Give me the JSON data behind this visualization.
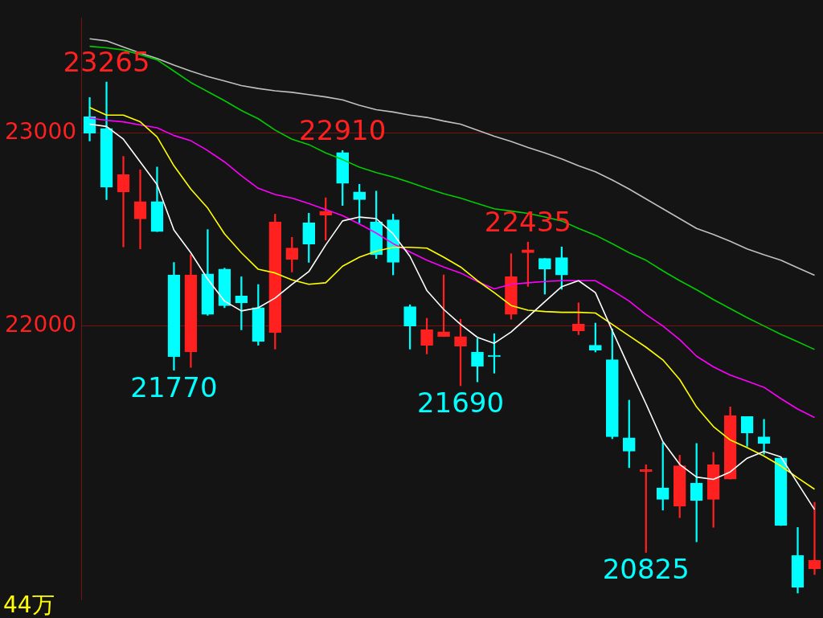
{
  "chart_data": {
    "type": "candlestick",
    "categories": [
      null,
      null,
      null,
      null,
      null,
      null,
      null,
      null,
      null,
      null,
      null,
      null,
      null,
      null,
      null,
      null,
      null,
      null,
      null,
      null,
      null,
      null,
      null,
      null,
      null,
      null,
      null,
      null,
      null,
      null,
      null,
      null,
      null,
      null,
      null,
      null,
      null,
      null,
      null,
      null,
      null,
      null,
      null,
      null
    ],
    "ohlc": [
      [
        23085,
        23185,
        22960,
        23000
      ],
      [
        23025,
        23265,
        22655,
        22720
      ],
      [
        22695,
        22880,
        22410,
        22785
      ],
      [
        22555,
        22810,
        22400,
        22645
      ],
      [
        22645,
        22825,
        22490,
        22490
      ],
      [
        22265,
        22330,
        21770,
        21840
      ],
      [
        21865,
        22370,
        21785,
        22265
      ],
      [
        22270,
        22500,
        22055,
        22060
      ],
      [
        22295,
        22300,
        22095,
        22105
      ],
      [
        22155,
        22255,
        21980,
        22120
      ],
      [
        22095,
        22215,
        21900,
        21920
      ],
      [
        21965,
        22580,
        21880,
        22540
      ],
      [
        22345,
        22460,
        22280,
        22405
      ],
      [
        22535,
        22585,
        22330,
        22425
      ],
      [
        22575,
        22665,
        22445,
        22595
      ],
      [
        22900,
        22910,
        22625,
        22740
      ],
      [
        22695,
        22735,
        22535,
        22655
      ],
      [
        22540,
        22700,
        22350,
        22370
      ],
      [
        22550,
        22580,
        22265,
        22330
      ],
      [
        22100,
        22110,
        21880,
        22000
      ],
      [
        21900,
        22040,
        21855,
        21980
      ],
      [
        21945,
        22265,
        21945,
        21970
      ],
      [
        21895,
        22035,
        21690,
        21945
      ],
      [
        21865,
        21935,
        21710,
        21790
      ],
      [
        21845,
        21960,
        21755,
        21840
      ],
      [
        22060,
        22375,
        22035,
        22255
      ],
      [
        22380,
        22435,
        22205,
        22395
      ],
      [
        22350,
        22350,
        22165,
        22295
      ],
      [
        22355,
        22410,
        22190,
        22265
      ],
      [
        21975,
        22120,
        21955,
        22010
      ],
      [
        21900,
        22015,
        21865,
        21875
      ],
      [
        21825,
        21985,
        21415,
        21425
      ],
      [
        21420,
        21615,
        21265,
        21350
      ],
      [
        21245,
        21280,
        20825,
        21255
      ],
      [
        21160,
        21395,
        21045,
        21100
      ],
      [
        21065,
        21330,
        21005,
        21275
      ],
      [
        21185,
        21390,
        20880,
        21095
      ],
      [
        21100,
        21345,
        20955,
        21280
      ],
      [
        21205,
        21580,
        21205,
        21535
      ],
      [
        21530,
        21530,
        21375,
        21445
      ],
      [
        21425,
        21515,
        21335,
        21390
      ],
      [
        21315,
        21315,
        20965,
        20965
      ],
      [
        20810,
        20955,
        20615,
        20645
      ],
      [
        20740,
        21085,
        20710,
        20785
      ]
    ],
    "colors": [
      "#00ffff",
      "#00ffff",
      "#ff2020",
      "#ff2020",
      "#00ffff",
      "#00ffff",
      "#ff2020",
      "#00ffff",
      "#00ffff",
      "#00ffff",
      "#00ffff",
      "#ff2020",
      "#ff2020",
      "#00ffff",
      "#ff2020",
      "#00ffff",
      "#00ffff",
      "#00ffff",
      "#00ffff",
      "#00ffff",
      "#ff2020",
      "#ff2020",
      "#ff2020",
      "#00ffff",
      "#00ffff",
      "#ff2020",
      "#ff2020",
      "#00ffff",
      "#00ffff",
      "#ff2020",
      "#00ffff",
      "#00ffff",
      "#00ffff",
      "#ff2020",
      "#00ffff",
      "#ff2020",
      "#00ffff",
      "#ff2020",
      "#ff2020",
      "#00ffff",
      "#00ffff",
      "#00ffff",
      "#00ffff",
      "#ff2020"
    ],
    "series": [
      {
        "type": "line",
        "color": "#ffffff",
        "values": [
          23047,
          23035,
          22969,
          22851,
          22733,
          22498,
          22380,
          22243,
          22129,
          22078,
          22094,
          22145,
          22216,
          22282,
          22420,
          22545,
          22565,
          22557,
          22478,
          22361,
          22184,
          22086,
          22008,
          21941,
          21910,
          21969,
          22047,
          22126,
          22204,
          22235,
          22173,
          21976,
          21784,
          21596,
          21400,
          21282,
          21216,
          21204,
          21243,
          21314,
          21349,
          21321,
          21184,
          21047
        ]
      },
      {
        "type": "line",
        "color": "#ffff00",
        "values": [
          23133,
          23094,
          23094,
          23059,
          22981,
          22831,
          22710,
          22612,
          22478,
          22380,
          22294,
          22275,
          22239,
          22216,
          22224,
          22310,
          22357,
          22388,
          22408,
          22408,
          22404,
          22357,
          22306,
          22235,
          22173,
          22106,
          22082,
          22075,
          22071,
          22071,
          22067,
          22008,
          21949,
          21890,
          21824,
          21722,
          21580,
          21478,
          21408,
          21369,
          21325,
          21274,
          21212,
          21153
        ]
      },
      {
        "type": "line",
        "color": "#ff00ff",
        "values": [
          23079,
          23067,
          23059,
          23043,
          23028,
          22988,
          22961,
          22910,
          22851,
          22780,
          22714,
          22682,
          22663,
          22635,
          22604,
          22573,
          22529,
          22482,
          22427,
          22384,
          22341,
          22306,
          22275,
          22231,
          22192,
          22216,
          22224,
          22231,
          22235,
          22235,
          22235,
          22184,
          22129,
          22059,
          22000,
          21929,
          21843,
          21788,
          21745,
          21714,
          21682,
          21623,
          21569,
          21525
        ]
      },
      {
        "type": "line",
        "color": "#00cc00",
        "values": [
          23451,
          23443,
          23432,
          23408,
          23381,
          23322,
          23263,
          23216,
          23169,
          23118,
          23075,
          23016,
          22969,
          22941,
          22898,
          22863,
          22824,
          22796,
          22773,
          22745,
          22714,
          22686,
          22663,
          22635,
          22608,
          22596,
          22584,
          22565,
          22545,
          22506,
          22471,
          22427,
          22380,
          22341,
          22286,
          22235,
          22188,
          22137,
          22090,
          22043,
          22000,
          21957,
          21918,
          21878
        ]
      },
      {
        "type": "line",
        "color": "#c0c0c0",
        "values": [
          23490,
          23479,
          23447,
          23416,
          23388,
          23353,
          23322,
          23294,
          23271,
          23247,
          23232,
          23220,
          23212,
          23200,
          23188,
          23173,
          23145,
          23122,
          23110,
          23094,
          23082,
          23063,
          23047,
          23016,
          22984,
          22957,
          22926,
          22898,
          22867,
          22831,
          22800,
          22757,
          22710,
          22659,
          22608,
          22557,
          22506,
          22475,
          22439,
          22400,
          22369,
          22341,
          22302,
          22263
        ]
      }
    ],
    "ylim": [
      20580,
      23596
    ],
    "yticks": [
      22000,
      23000
    ],
    "tick_labels": "y",
    "grid": "y",
    "legend": false,
    "marker": "none",
    "annotations": [
      {
        "text": "23265",
        "y": 23265
      },
      {
        "text": "22910",
        "y": 22910
      },
      {
        "text": "22435",
        "y": 22435
      },
      {
        "text": "21770",
        "y": 21770
      },
      {
        "text": "21690",
        "y": 21690
      },
      {
        "text": "20825",
        "y": 20825
      },
      "44万"
    ]
  }
}
